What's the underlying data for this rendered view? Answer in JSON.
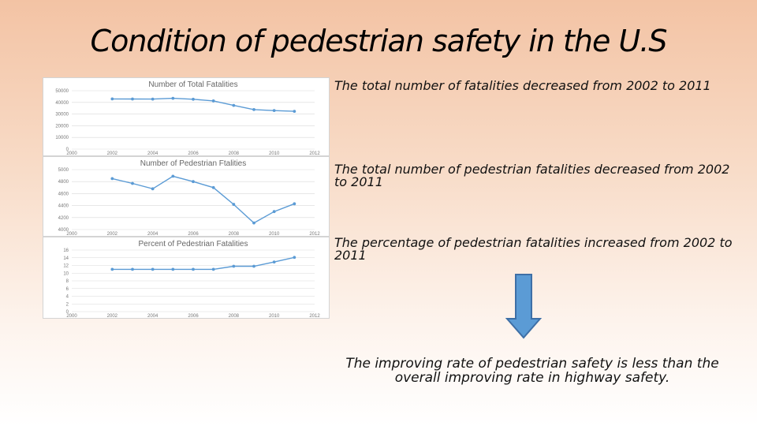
{
  "slide": {
    "title": "Condition of pedestrian safety in the U.S",
    "bullets": [
      "The total number of fatalities decreased from 2002 to 2011",
      "The total number of pedestrian fatalities decreased from 2002 to 2011",
      "The percentage of pedestrian fatalities increased from 2002 to 2011"
    ],
    "conclusion": "The improving rate of pedestrian safety is less than the overall improving rate in highway safety.",
    "arrow_icon": "down-arrow-icon",
    "colors": {
      "series": "#5b9bd5",
      "arrow_fill": "#5b9bd5",
      "arrow_stroke": "#3e6fa6",
      "grid": "#d9d9d9"
    }
  },
  "chart_data": [
    {
      "type": "line",
      "title": "Number of Total Fatalities",
      "x": [
        2002,
        2003,
        2004,
        2005,
        2006,
        2007,
        2008,
        2009,
        2010,
        2011
      ],
      "values": [
        43005,
        42884,
        42836,
        43510,
        42708,
        41259,
        37423,
        33883,
        32999,
        32367
      ],
      "xlim": [
        2000,
        2012
      ],
      "ylim": [
        0,
        50000
      ],
      "xticks": [
        "2000",
        "2002",
        "2004",
        "2006",
        "2008",
        "2010",
        "2012"
      ],
      "yticks": [
        "0",
        "10000",
        "20000",
        "30000",
        "40000",
        "50000"
      ],
      "grid": true
    },
    {
      "type": "line",
      "title": "Number of Pedestrian Ftalities",
      "x": [
        2002,
        2003,
        2004,
        2005,
        2006,
        2007,
        2008,
        2009,
        2010,
        2011
      ],
      "values": [
        4850,
        4770,
        4680,
        4890,
        4800,
        4700,
        4420,
        4110,
        4300,
        4430
      ],
      "xlim": [
        2000,
        2012
      ],
      "ylim": [
        4000,
        5000
      ],
      "xticks": [
        "2000",
        "2002",
        "2004",
        "2006",
        "2008",
        "2010",
        "2012"
      ],
      "yticks": [
        "4000",
        "4200",
        "4400",
        "4600",
        "4800",
        "5000"
      ],
      "grid": true
    },
    {
      "type": "line",
      "title": "Percent of Pedestrian Fatalities",
      "x": [
        2002,
        2003,
        2004,
        2005,
        2006,
        2007,
        2008,
        2009,
        2010,
        2011
      ],
      "values": [
        11,
        11,
        11,
        11,
        11,
        11,
        11.8,
        11.8,
        12.9,
        14.1
      ],
      "xlim": [
        2000,
        2012
      ],
      "ylim": [
        0,
        16
      ],
      "xticks": [
        "2000",
        "2002",
        "2004",
        "2006",
        "2008",
        "2010",
        "2012"
      ],
      "yticks": [
        "0",
        "2",
        "4",
        "6",
        "8",
        "10",
        "12",
        "14",
        "16"
      ],
      "grid": true
    }
  ]
}
